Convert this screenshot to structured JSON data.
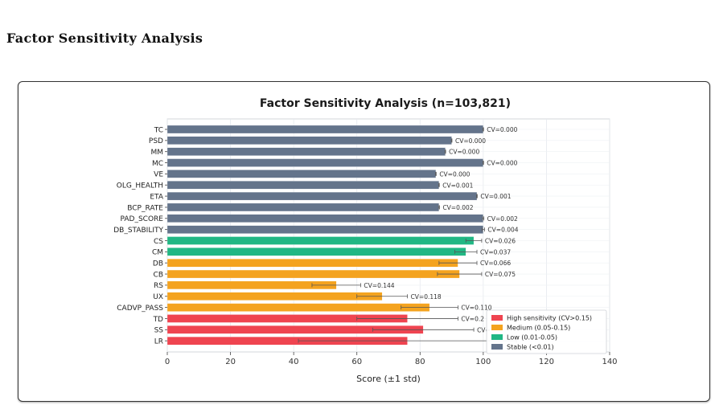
{
  "page": {
    "heading": "Factor Sensitivity Analysis"
  },
  "colors": {
    "high": "#ef4450",
    "medium": "#f4a31f",
    "low": "#21b784",
    "stable": "#64748b",
    "grid": "#e6e9ee",
    "errorbar": "#555555"
  },
  "chart_data": {
    "type": "bar",
    "orientation": "horizontal",
    "title": "Factor Sensitivity Analysis (n=103,821)",
    "xlabel": "Score (±1 std)",
    "ylabel": "",
    "xlim": [
      0,
      140
    ],
    "xticks": [
      "0",
      "20",
      "40",
      "60",
      "80",
      "100",
      "120",
      "140"
    ],
    "grid": "vertical",
    "categories": [
      "TC",
      "PSD",
      "MM",
      "MC",
      "VE",
      "OLG_HEALTH",
      "ETA",
      "BCP_RATE",
      "PAD_SCORE",
      "DB_STABILITY",
      "CS",
      "CM",
      "DB",
      "CB",
      "RS",
      "UX",
      "CADVP_PASS",
      "TD",
      "SS",
      "LR"
    ],
    "values": [
      100.0,
      90.0,
      88.0,
      100.0,
      85.0,
      86.0,
      98.0,
      86.0,
      100.0,
      100.0,
      97.0,
      94.5,
      92.0,
      92.5,
      53.5,
      68.0,
      83.0,
      76.0,
      81.0,
      76.0
    ],
    "std": [
      0.1,
      0.1,
      0.1,
      0.1,
      0.1,
      0.1,
      0.1,
      0.15,
      0.2,
      0.4,
      2.5,
      3.5,
      6.0,
      7.0,
      7.7,
      8.0,
      9.0,
      16.0,
      16.0,
      34.5
    ],
    "cv_labels": [
      "CV=0.000",
      "CV=0.000",
      "CV=0.000",
      "CV=0.000",
      "CV=0.000",
      "CV=0.001",
      "CV=0.001",
      "CV=0.002",
      "CV=0.002",
      "CV=0.004",
      "CV=0.026",
      "CV=0.037",
      "CV=0.066",
      "CV=0.075",
      "CV=0.144",
      "CV=0.118",
      "CV=0.110",
      "CV=0.2",
      "CV=",
      ""
    ],
    "groups": [
      "stable",
      "stable",
      "stable",
      "stable",
      "stable",
      "stable",
      "stable",
      "stable",
      "stable",
      "stable",
      "low",
      "low",
      "medium",
      "medium",
      "medium",
      "medium",
      "medium",
      "high",
      "high",
      "high"
    ],
    "legend": {
      "position": "lower-right",
      "entries": [
        {
          "group": "high",
          "label": "High sensitivity (CV>0.15)"
        },
        {
          "group": "medium",
          "label": "Medium (0.05-0.15)"
        },
        {
          "group": "low",
          "label": "Low (0.01-0.05)"
        },
        {
          "group": "stable",
          "label": "Stable (<0.01)"
        }
      ]
    }
  }
}
